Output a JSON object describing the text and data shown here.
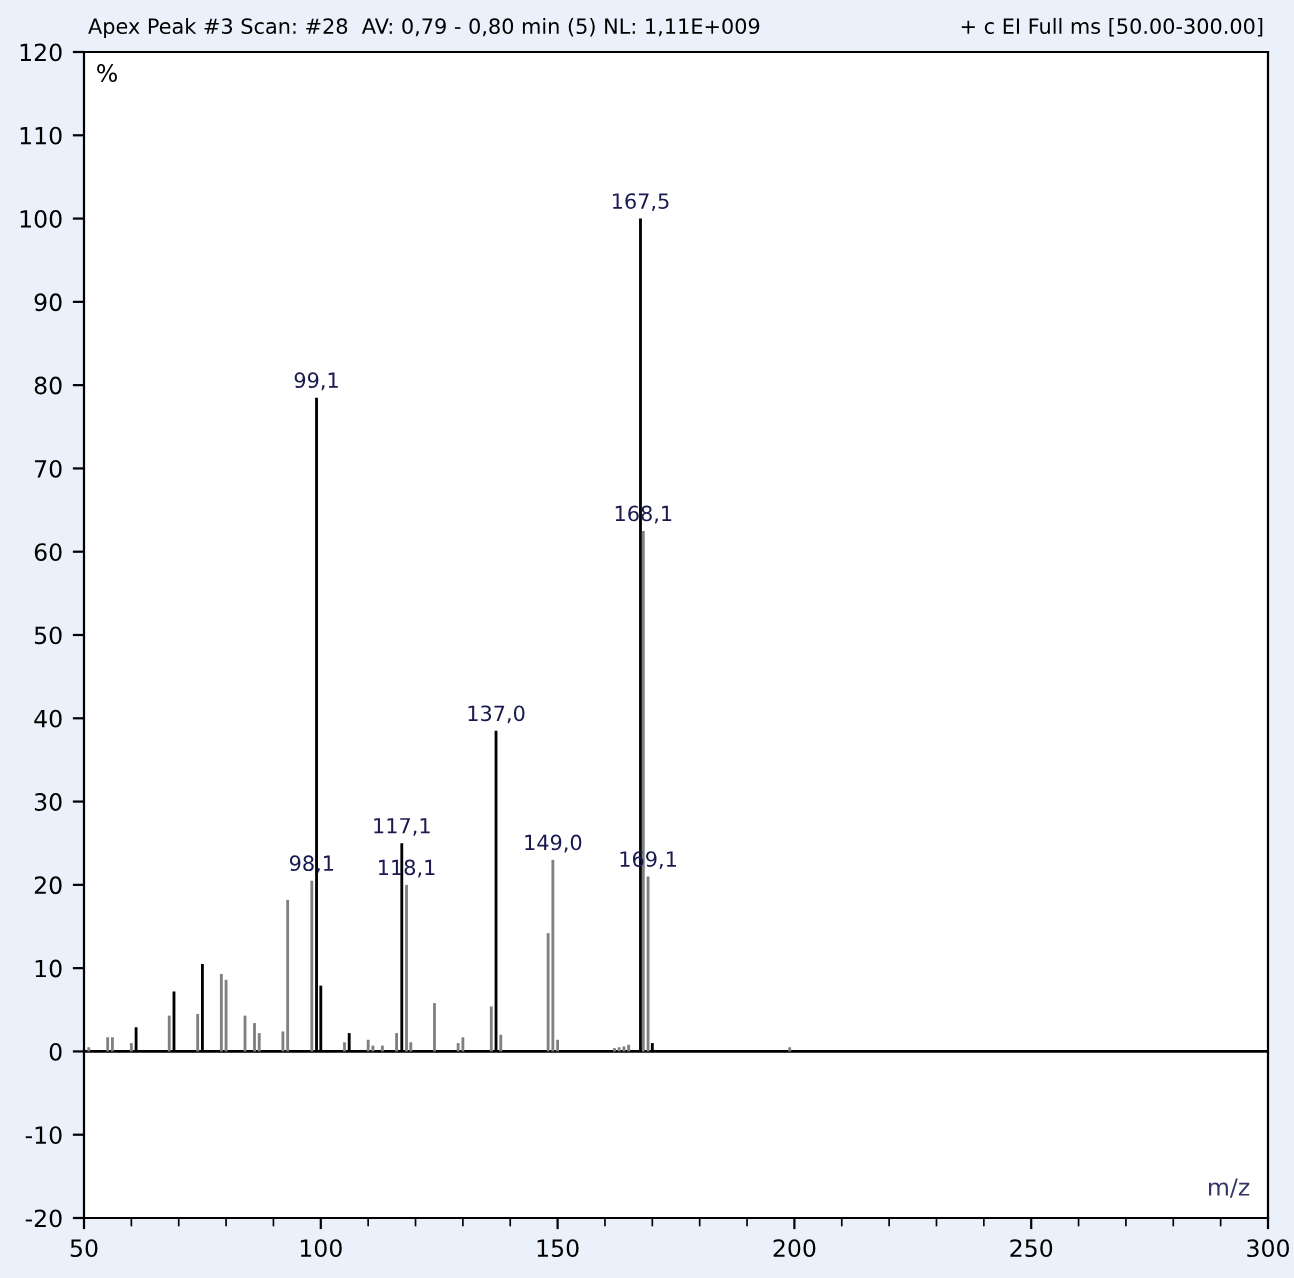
{
  "chart_data": {
    "type": "bar",
    "title": "Apex Peak #3 Scan: #28  AV: 0,79 - 0,80 min (5) NL: 1,11E+009",
    "subtitle": "+ c EI Full ms [50.00-300.00]",
    "xlabel": "m/z",
    "ylabel": "%",
    "x": [
      51,
      55,
      56,
      60,
      61,
      68,
      69,
      74,
      75,
      79,
      80,
      84,
      86,
      87,
      92,
      93,
      98.1,
      99.1,
      100,
      105,
      106,
      110,
      111,
      113,
      116,
      117.1,
      118.1,
      119,
      124,
      129,
      130,
      136,
      137.0,
      138,
      148,
      149.0,
      150,
      162,
      163,
      164,
      165,
      167.5,
      168.1,
      169.1,
      170,
      199
    ],
    "values": [
      0.5,
      1.7,
      1.7,
      1,
      2.9,
      4.3,
      7.2,
      4.5,
      10.5,
      9.3,
      8.6,
      4.3,
      3.4,
      2.2,
      2.4,
      18.2,
      20.5,
      78.5,
      7.9,
      1.1,
      2.2,
      1.4,
      0.7,
      0.7,
      2.2,
      25,
      20,
      1.1,
      5.8,
      1,
      1.7,
      5.4,
      38.5,
      2,
      14.2,
      23,
      1.4,
      0.4,
      0.5,
      0.6,
      0.8,
      100,
      62.5,
      21,
      1,
      0.5
    ],
    "colors": [
      "#808080",
      "#808080",
      "#808080",
      "#808080",
      "#000000",
      "#808080",
      "#000000",
      "#808080",
      "#000000",
      "#808080",
      "#808080",
      "#808080",
      "#808080",
      "#808080",
      "#808080",
      "#808080",
      "#808080",
      "#000000",
      "#000000",
      "#808080",
      "#000000",
      "#808080",
      "#808080",
      "#808080",
      "#808080",
      "#000000",
      "#808080",
      "#808080",
      "#808080",
      "#808080",
      "#808080",
      "#808080",
      "#000000",
      "#808080",
      "#808080",
      "#808080",
      "#808080",
      "#808080",
      "#808080",
      "#808080",
      "#808080",
      "#000000",
      "#808080",
      "#808080",
      "#000000",
      "#808080"
    ],
    "annotations": [
      {
        "text": "98,1",
        "x": 98.1,
        "y": 20.5
      },
      {
        "text": "99,1",
        "x": 99.1,
        "y": 78.5
      },
      {
        "text": "117,1",
        "x": 117.1,
        "y": 25
      },
      {
        "text": "118,1",
        "x": 118.1,
        "y": 20
      },
      {
        "text": "137,0",
        "x": 137.0,
        "y": 38.5
      },
      {
        "text": "149,0",
        "x": 149.0,
        "y": 23
      },
      {
        "text": "167,5",
        "x": 167.5,
        "y": 100
      },
      {
        "text": "168,1",
        "x": 168.1,
        "y": 62.5
      },
      {
        "text": "169,1",
        "x": 169.1,
        "y": 21
      }
    ],
    "xlim": [
      50,
      300
    ],
    "xticks": [
      50,
      100,
      150,
      200,
      250,
      300
    ],
    "ylim": [
      -20,
      120
    ],
    "yticks": [
      -20,
      -10,
      0,
      10,
      20,
      30,
      40,
      50,
      60,
      70,
      80,
      90,
      100,
      110,
      120
    ],
    "ref_lines": [
      {
        "axis": "y",
        "value": 0,
        "color": "#000000"
      }
    ],
    "grid": false,
    "legend": false
  }
}
